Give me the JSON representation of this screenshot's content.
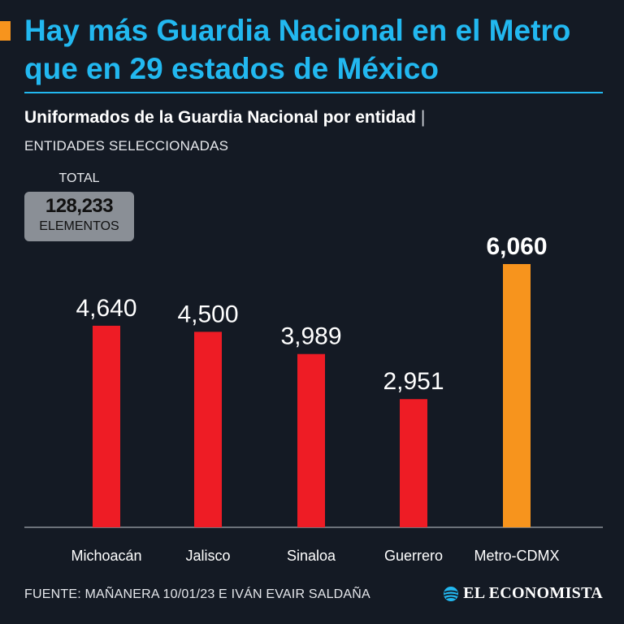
{
  "headline": "Hay más Guardia Nacional en el Metro que en 29 estados de México",
  "subtitle": "Uniformados de la Guardia Nacional por entidad",
  "subtitle_separator": "|",
  "subtitle2": "ENTIDADES SELECCIONADAS",
  "total": {
    "label": "TOTAL",
    "value": "128,233",
    "unit": "ELEMENTOS"
  },
  "footer": {
    "source": "FUENTE: MAÑANERA 10/01/23 E IVÁN EVAIR SALDAÑA",
    "brand": "EL ECONOMISTA"
  },
  "colors": {
    "background": "#141a24",
    "headline": "#22b8f0",
    "bar_default": "#ee1c25",
    "bar_highlight": "#f7941d",
    "accent": "#f7941d"
  },
  "chart_data": {
    "type": "bar",
    "title": "Uniformados de la Guardia Nacional por entidad",
    "xlabel": "",
    "ylabel": "",
    "ylim": [
      0,
      6300
    ],
    "categories": [
      "Michoacán",
      "Jalisco",
      "Sinaloa",
      "Guerrero",
      "Metro-CDMX"
    ],
    "values": [
      4640,
      4500,
      3989,
      2951,
      6060
    ],
    "value_labels": [
      "4,640",
      "4,500",
      "3,989",
      "2,951",
      "6,060"
    ],
    "highlight": "Metro-CDMX",
    "grid": false
  }
}
